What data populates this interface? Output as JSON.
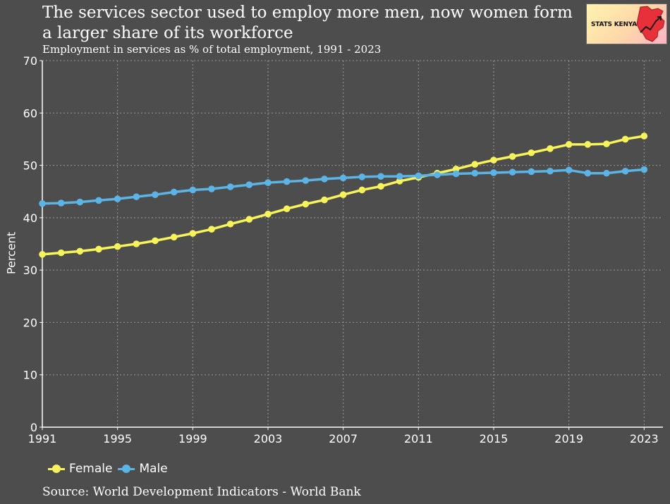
{
  "header": {
    "title": "The services sector used to employ more men, now women form a larger share of its workforce",
    "subtitle": "Employment in services as % of total employment, 1991 - 2023"
  },
  "logo": {
    "text": "STATS KENYA",
    "icon": "kenya-map-trend-icon"
  },
  "footer": {
    "source": "Source: World Development Indicators - World Bank"
  },
  "colors": {
    "background": "#4d4d4d",
    "female": "#f7f35a",
    "male": "#5bb4e5",
    "grid": "#9a9a9a",
    "axis": "#ffffff"
  },
  "legend": [
    {
      "label": "Female",
      "color": "#f7f35a"
    },
    {
      "label": "Male",
      "color": "#5bb4e5"
    }
  ],
  "chart_data": {
    "type": "line",
    "title": "The services sector used to employ more men, now women form a larger share of its workforce",
    "subtitle": "Employment in services as % of total employment, 1991 - 2023",
    "xlabel": "",
    "ylabel": "Percent",
    "xlim": [
      1991,
      2024
    ],
    "ylim": [
      0,
      70
    ],
    "xticks": [
      1991,
      1995,
      1999,
      2003,
      2007,
      2011,
      2015,
      2019,
      2023
    ],
    "yticks": [
      0,
      10,
      20,
      30,
      40,
      50,
      60,
      70
    ],
    "grid": true,
    "legend_position": "bottom-left",
    "x": [
      1991,
      1992,
      1993,
      1994,
      1995,
      1996,
      1997,
      1998,
      1999,
      2000,
      2001,
      2002,
      2003,
      2004,
      2005,
      2006,
      2007,
      2008,
      2009,
      2010,
      2011,
      2012,
      2013,
      2014,
      2015,
      2016,
      2017,
      2018,
      2019,
      2020,
      2021,
      2022,
      2023
    ],
    "series": [
      {
        "name": "Female",
        "color": "#f7f35a",
        "values": [
          33.0,
          33.3,
          33.6,
          34.0,
          34.5,
          35.0,
          35.6,
          36.3,
          37.0,
          37.8,
          38.8,
          39.7,
          40.7,
          41.7,
          42.6,
          43.4,
          44.4,
          45.3,
          46.0,
          47.0,
          47.7,
          48.5,
          49.3,
          50.2,
          51.0,
          51.7,
          52.4,
          53.2,
          54.0,
          54.0,
          54.1,
          55.0,
          55.6
        ]
      },
      {
        "name": "Male",
        "color": "#5bb4e5",
        "values": [
          42.7,
          42.8,
          43.0,
          43.3,
          43.6,
          44.0,
          44.4,
          44.9,
          45.3,
          45.5,
          45.9,
          46.3,
          46.7,
          46.9,
          47.1,
          47.4,
          47.6,
          47.8,
          47.9,
          47.9,
          48.0,
          48.2,
          48.4,
          48.5,
          48.6,
          48.7,
          48.8,
          48.9,
          49.1,
          48.5,
          48.5,
          48.9,
          49.2
        ]
      }
    ]
  }
}
